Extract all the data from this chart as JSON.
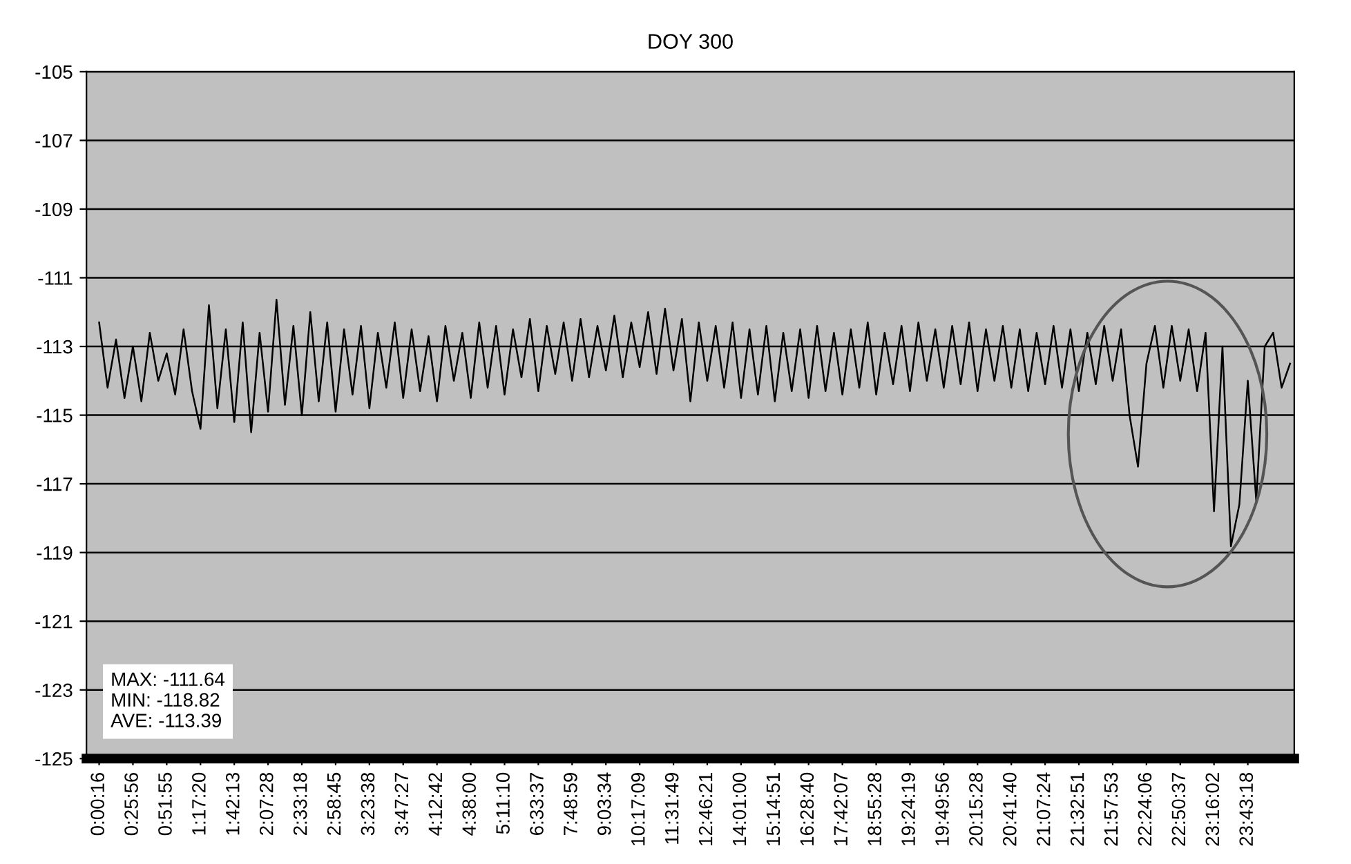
{
  "chart_data": {
    "type": "line",
    "title": "DOY 300",
    "categories": [
      "0:00:16",
      null,
      null,
      null,
      "0:25:56",
      null,
      null,
      null,
      "0:51:55",
      null,
      null,
      null,
      "1:17:20",
      null,
      null,
      null,
      "1:42:13",
      null,
      null,
      null,
      "2:07:28",
      null,
      null,
      null,
      "2:33:18",
      null,
      null,
      null,
      "2:58:45",
      null,
      null,
      null,
      "3:23:38",
      null,
      null,
      null,
      "3:47:27",
      null,
      null,
      null,
      "4:12:42",
      null,
      null,
      null,
      "4:38:00",
      null,
      null,
      null,
      "5:11:10",
      null,
      null,
      null,
      "6:33:37",
      null,
      null,
      null,
      "7:48:59",
      null,
      null,
      null,
      "9:03:34",
      null,
      null,
      null,
      "10:17:09",
      null,
      null,
      null,
      "11:31:49",
      null,
      null,
      null,
      "12:46:21",
      null,
      null,
      null,
      "14:01:00",
      null,
      null,
      null,
      "15:14:51",
      null,
      null,
      null,
      "16:28:40",
      null,
      null,
      null,
      "17:42:07",
      null,
      null,
      null,
      "18:55:28",
      null,
      null,
      null,
      "19:24:19",
      null,
      null,
      null,
      "19:49:56",
      null,
      null,
      null,
      "20:15:28",
      null,
      null,
      null,
      "20:41:40",
      null,
      null,
      null,
      "21:07:24",
      null,
      null,
      null,
      "21:32:51",
      null,
      null,
      null,
      "21:57:53",
      null,
      null,
      null,
      "22:24:06",
      null,
      null,
      null,
      "22:50:37",
      null,
      null,
      null,
      "23:16:02",
      null,
      null,
      null,
      "23:43:18",
      null,
      null,
      null,
      null,
      null
    ],
    "series": [
      {
        "color": "#000000",
        "values": [
          -112.3,
          -114.2,
          -112.8,
          -114.5,
          -113.0,
          -114.6,
          -112.6,
          -114.0,
          -113.2,
          -114.4,
          -112.5,
          -114.3,
          -115.4,
          -111.8,
          -114.8,
          -112.5,
          -115.2,
          -112.3,
          -115.5,
          -112.6,
          -114.9,
          -111.64,
          -114.7,
          -112.4,
          -115.0,
          -112.0,
          -114.6,
          -112.3,
          -114.9,
          -112.5,
          -114.4,
          -112.4,
          -114.8,
          -112.6,
          -114.2,
          -112.3,
          -114.5,
          -112.5,
          -114.3,
          -112.7,
          -114.6,
          -112.4,
          -114.0,
          -112.6,
          -114.5,
          -112.3,
          -114.2,
          -112.4,
          -114.4,
          -112.5,
          -113.9,
          -112.2,
          -114.3,
          -112.4,
          -113.8,
          -112.3,
          -114.0,
          -112.2,
          -113.9,
          -112.4,
          -113.7,
          -112.1,
          -113.9,
          -112.3,
          -113.6,
          -112.0,
          -113.8,
          -111.9,
          -113.7,
          -112.2,
          -114.6,
          -112.3,
          -114.0,
          -112.4,
          -114.2,
          -112.3,
          -114.5,
          -112.5,
          -114.4,
          -112.4,
          -114.6,
          -112.6,
          -114.3,
          -112.5,
          -114.5,
          -112.4,
          -114.3,
          -112.6,
          -114.4,
          -112.5,
          -114.2,
          -112.3,
          -114.4,
          -112.6,
          -114.1,
          -112.4,
          -114.3,
          -112.3,
          -114.0,
          -112.5,
          -114.2,
          -112.4,
          -114.1,
          -112.3,
          -114.3,
          -112.5,
          -114.0,
          -112.4,
          -114.2,
          -112.5,
          -114.3,
          -112.6,
          -114.1,
          -112.4,
          -114.2,
          -112.5,
          -114.3,
          -112.6,
          -114.1,
          -112.4,
          -114.0,
          -112.5,
          -115.0,
          -116.5,
          -113.5,
          -112.4,
          -114.2,
          -112.4,
          -114.0,
          -112.5,
          -114.3,
          -112.6,
          -117.8,
          -113.0,
          -118.82,
          -117.6,
          -114.0,
          -117.5,
          -113.0,
          -112.6,
          -114.2,
          -113.5
        ]
      }
    ],
    "ylim": [
      -125,
      -105
    ],
    "yticks": [
      -125,
      -123,
      -121,
      -119,
      -117,
      -115,
      -113,
      -111,
      -109,
      -107,
      -105
    ],
    "grid": "y",
    "marker": "none",
    "line_style": "solid",
    "annotations": [
      "MAX: -111.64\nMIN: -118.82\nAVE: -113.39"
    ]
  }
}
